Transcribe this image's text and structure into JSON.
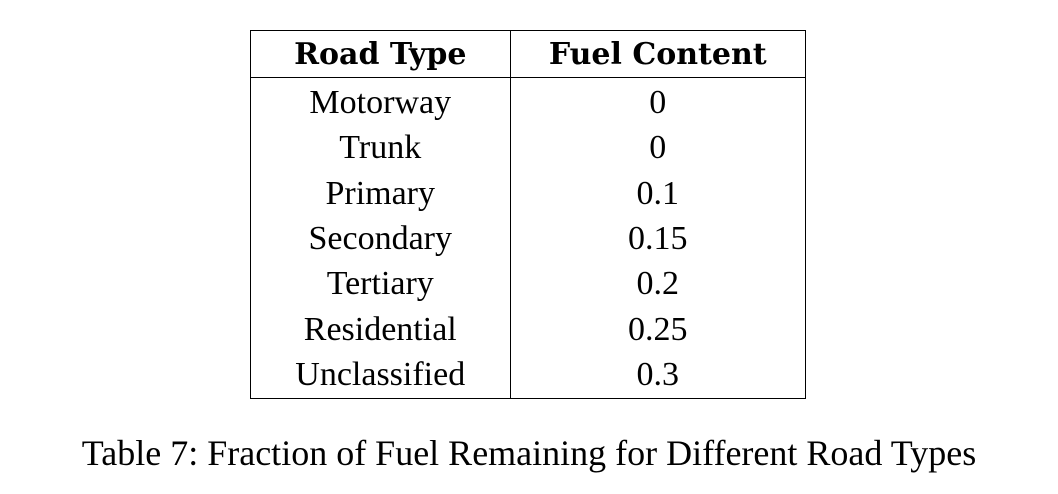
{
  "table": {
    "headers": [
      "Road Type",
      "Fuel Content"
    ],
    "rows": [
      [
        "Motorway",
        "0"
      ],
      [
        "Trunk",
        "0"
      ],
      [
        "Primary",
        "0.1"
      ],
      [
        "Secondary",
        "0.15"
      ],
      [
        "Tertiary",
        "0.2"
      ],
      [
        "Residential",
        "0.25"
      ],
      [
        "Unclassified",
        "0.3"
      ]
    ]
  },
  "caption": "Table 7: Fraction of Fuel Remaining for Different Road Types"
}
